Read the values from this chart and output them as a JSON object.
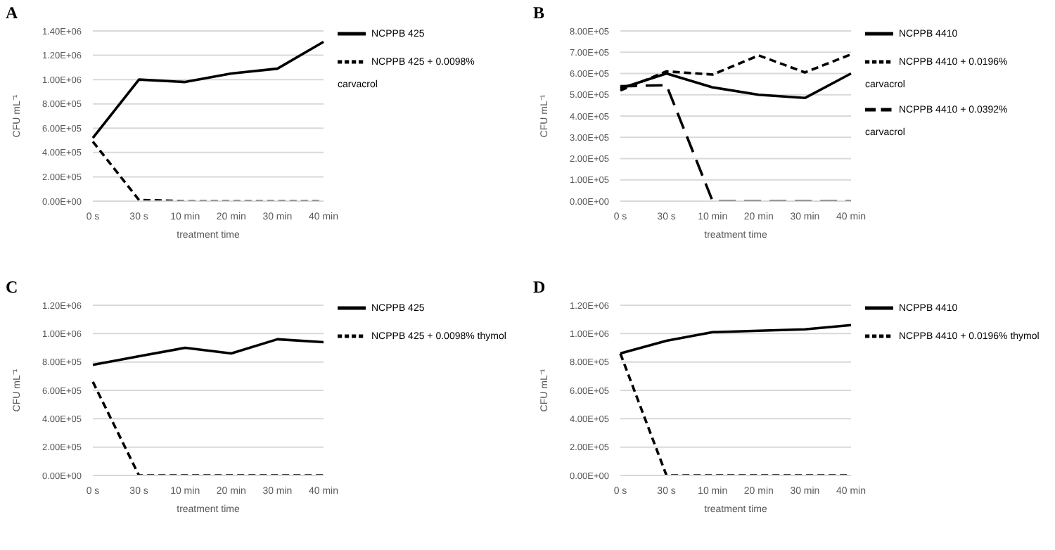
{
  "chart_data": [
    {
      "type": "line",
      "title": "A",
      "xlabel": "treatment time",
      "ylabel": "CFU mL⁻¹",
      "categories": [
        "0 s",
        "30 s",
        "10 min",
        "20 min",
        "30 min",
        "40 min"
      ],
      "ylim": [
        0,
        1400000
      ],
      "yticks": [
        {
          "value": 0,
          "label": "0.00E+00"
        },
        {
          "value": 200000,
          "label": "2.00E+05"
        },
        {
          "value": 400000,
          "label": "4.00E+05"
        },
        {
          "value": 600000,
          "label": "6.00E+05"
        },
        {
          "value": 800000,
          "label": "8.00E+05"
        },
        {
          "value": 1000000,
          "label": "1.00E+06"
        },
        {
          "value": 1200000,
          "label": "1.20E+06"
        },
        {
          "value": 1400000,
          "label": "1.40E+06"
        }
      ],
      "grid": "y",
      "legend": "right",
      "marker": "none",
      "series": [
        {
          "name": "NCPPB 425",
          "color": "#000000",
          "line_style": "solid",
          "values": [
            520000,
            1000000,
            980000,
            1050000,
            1090000,
            1310000
          ]
        },
        {
          "name": "NCPPB 425 + 0.0098% carvacrol",
          "color": "#000000",
          "line_style": "dashed",
          "values": [
            490000,
            10000,
            0,
            0,
            0,
            0
          ]
        }
      ]
    },
    {
      "type": "line",
      "title": "B",
      "xlabel": "treatment time",
      "ylabel": "CFU mL⁻¹",
      "categories": [
        "0 s",
        "30 s",
        "10 min",
        "20 min",
        "30 min",
        "40 min"
      ],
      "ylim": [
        0,
        800000
      ],
      "yticks": [
        {
          "value": 0,
          "label": "0.00E+00"
        },
        {
          "value": 100000,
          "label": "1.00E+05"
        },
        {
          "value": 200000,
          "label": "2.00E+05"
        },
        {
          "value": 300000,
          "label": "3.00E+05"
        },
        {
          "value": 400000,
          "label": "4.00E+05"
        },
        {
          "value": 500000,
          "label": "5.00E+05"
        },
        {
          "value": 600000,
          "label": "6.00E+05"
        },
        {
          "value": 700000,
          "label": "7.00E+05"
        },
        {
          "value": 800000,
          "label": "8.00E+05"
        }
      ],
      "grid": "y",
      "legend": "right",
      "marker": "none",
      "series": [
        {
          "name": "NCPPB 4410",
          "color": "#000000",
          "line_style": "solid",
          "values": [
            530000,
            600000,
            535000,
            500000,
            485000,
            600000
          ]
        },
        {
          "name": "NCPPB 4410 + 0.0196% carvacrol",
          "color": "#000000",
          "line_style": "dashed",
          "values": [
            520000,
            610000,
            595000,
            685000,
            605000,
            690000
          ]
        },
        {
          "name": "NCPPB 4410 + 0.0392% carvacrol",
          "color": "#000000",
          "line_style": "dashed",
          "values": [
            540000,
            545000,
            0,
            0,
            0,
            0
          ]
        }
      ]
    },
    {
      "type": "line",
      "title": "C",
      "xlabel": "treatment time",
      "ylabel": "CFU mL⁻¹",
      "categories": [
        "0 s",
        "30 s",
        "10 min",
        "20 min",
        "30 min",
        "40 min"
      ],
      "ylim": [
        0,
        1200000
      ],
      "yticks": [
        {
          "value": 0,
          "label": "0.00E+00"
        },
        {
          "value": 200000,
          "label": "2.00E+05"
        },
        {
          "value": 400000,
          "label": "4.00E+05"
        },
        {
          "value": 600000,
          "label": "6.00E+05"
        },
        {
          "value": 800000,
          "label": "8.00E+05"
        },
        {
          "value": 1000000,
          "label": "1.00E+06"
        },
        {
          "value": 1200000,
          "label": "1.20E+06"
        }
      ],
      "grid": "y",
      "legend": "right",
      "marker": "none",
      "series": [
        {
          "name": "NCPPB 425",
          "color": "#000000",
          "line_style": "solid",
          "values": [
            780000,
            840000,
            900000,
            860000,
            960000,
            940000
          ]
        },
        {
          "name": "NCPPB 425 + 0.0098% thymol",
          "color": "#000000",
          "line_style": "dashed",
          "values": [
            660000,
            0,
            0,
            0,
            0,
            0
          ]
        }
      ]
    },
    {
      "type": "line",
      "title": "D",
      "xlabel": "treatment time",
      "ylabel": "CFU mL⁻¹",
      "categories": [
        "0 s",
        "30 s",
        "10 min",
        "20 min",
        "30 min",
        "40 min"
      ],
      "ylim": [
        0,
        1200000
      ],
      "yticks": [
        {
          "value": 0,
          "label": "0.00E+00"
        },
        {
          "value": 200000,
          "label": "2.00E+05"
        },
        {
          "value": 400000,
          "label": "4.00E+05"
        },
        {
          "value": 600000,
          "label": "6.00E+05"
        },
        {
          "value": 800000,
          "label": "8.00E+05"
        },
        {
          "value": 1000000,
          "label": "1.00E+06"
        },
        {
          "value": 1200000,
          "label": "1.20E+06"
        }
      ],
      "grid": "y",
      "legend": "right",
      "marker": "none",
      "series": [
        {
          "name": "NCPPB 4410",
          "color": "#000000",
          "line_style": "solid",
          "values": [
            860000,
            950000,
            1010000,
            1020000,
            1030000,
            1060000
          ]
        },
        {
          "name": "NCPPB 4410 + 0.0196% thymol",
          "color": "#000000",
          "line_style": "dashed",
          "values": [
            860000,
            0,
            0,
            0,
            0,
            0
          ]
        }
      ]
    }
  ]
}
